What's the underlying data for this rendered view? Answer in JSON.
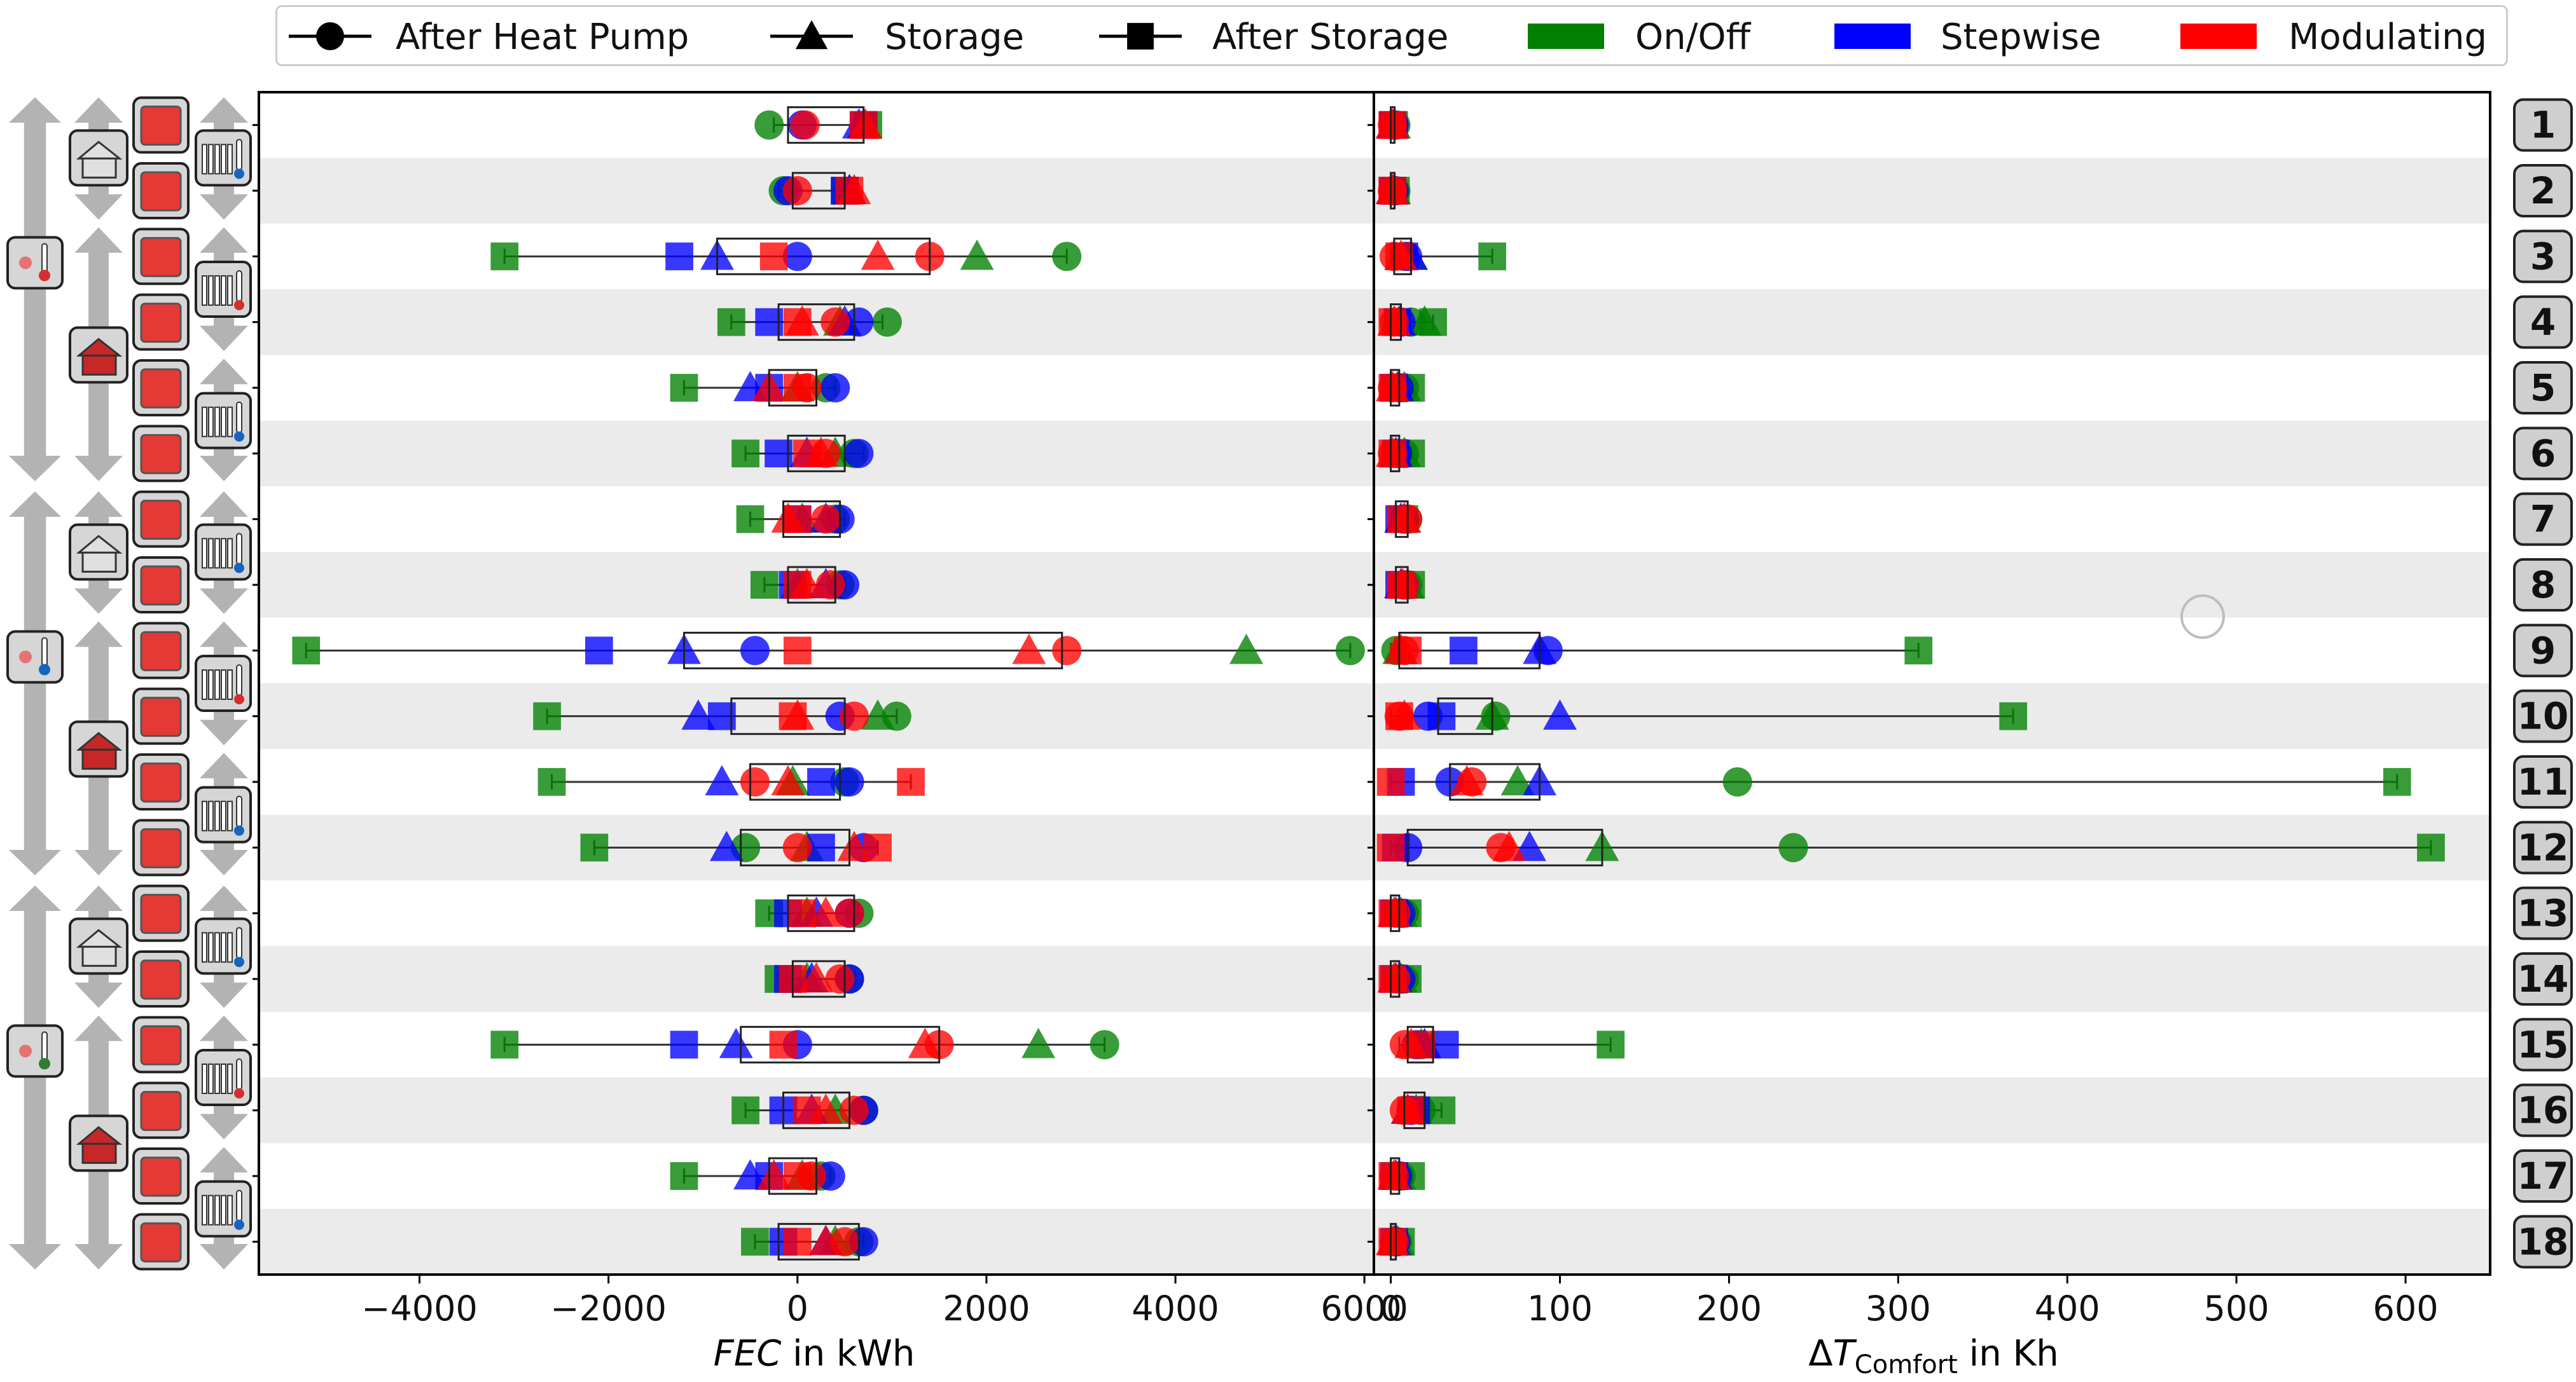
{
  "legend": {
    "entries": [
      {
        "label": "After Heat Pump",
        "marker": "circle",
        "kind": "line"
      },
      {
        "label": "Storage",
        "marker": "triangle",
        "kind": "line"
      },
      {
        "label": "After Storage",
        "marker": "square",
        "kind": "line"
      },
      {
        "label": "On/Off",
        "color": "#008000",
        "kind": "patch"
      },
      {
        "label": "Stepwise",
        "color": "#0000ff",
        "kind": "patch"
      },
      {
        "label": "Modulating",
        "color": "#ff0000",
        "kind": "patch"
      }
    ]
  },
  "colors": {
    "onoff": "#008000",
    "stepwise": "#0000ff",
    "modulating": "#ff0000",
    "band": "#ebebeb"
  },
  "icons": {
    "left_arrows": "double-arrow-icon",
    "house_light": "house-icon",
    "house_red": "red-house-icon",
    "storage": "storage-tank-icon",
    "radiator": "radiator-thermometer-icon",
    "weather": "weather-thermometer-icon"
  },
  "chart_data": [
    {
      "type": "scatter",
      "title": "",
      "xlabel": "FEC in kWh",
      "xlabel_italic_part": "FEC",
      "xlabel_rest": " in kWh",
      "xlim": [
        -5700,
        6100
      ],
      "xticks": [
        -4000,
        -2000,
        0,
        2000,
        4000,
        6000
      ],
      "xtick_labels": [
        "−4000",
        "−2000",
        "0",
        "2000",
        "4000",
        "6000"
      ],
      "rows": [
        {
          "box": [
            -100,
            700
          ],
          "wl": -250,
          "wh": 750,
          "onoff": [
            -300,
            700,
            750
          ],
          "stepwise": [
            50,
            650,
            700
          ],
          "modulating": [
            80,
            720,
            700
          ]
        },
        {
          "box": [
            -50,
            500
          ],
          "wl": -200,
          "wh": 600,
          "onoff": [
            -150,
            550,
            500
          ],
          "stepwise": [
            -100,
            550,
            500
          ],
          "modulating": [
            0,
            600,
            550
          ]
        },
        {
          "box": [
            -850,
            1400
          ],
          "wl": -3100,
          "wh": 2850,
          "onoff": [
            2850,
            1900,
            -3100
          ],
          "stepwise": [
            0,
            -850,
            -1250
          ],
          "modulating": [
            1400,
            850,
            -250
          ]
        },
        {
          "box": [
            -200,
            600
          ],
          "wl": -700,
          "wh": 900,
          "onoff": [
            950,
            450,
            -700
          ],
          "stepwise": [
            650,
            500,
            -300
          ],
          "modulating": [
            400,
            50,
            0
          ]
        },
        {
          "box": [
            -300,
            200
          ],
          "wl": -1200,
          "wh": 400,
          "onoff": [
            300,
            0,
            -1200
          ],
          "stepwise": [
            400,
            -500,
            -300
          ],
          "modulating": [
            100,
            -300,
            0
          ]
        },
        {
          "box": [
            -100,
            500
          ],
          "wl": -550,
          "wh": 700,
          "onoff": [
            600,
            400,
            -550
          ],
          "stepwise": [
            650,
            100,
            -200
          ],
          "modulating": [
            300,
            250,
            100
          ]
        },
        {
          "box": [
            -150,
            450
          ],
          "wl": -500,
          "wh": 500,
          "onoff": [
            400,
            50,
            -500
          ],
          "stepwise": [
            450,
            300,
            0
          ],
          "modulating": [
            300,
            -100,
            0
          ]
        },
        {
          "box": [
            -100,
            400
          ],
          "wl": -350,
          "wh": 500,
          "onoff": [
            450,
            0,
            -350
          ],
          "stepwise": [
            500,
            300,
            -50
          ],
          "modulating": [
            350,
            100,
            0
          ]
        },
        {
          "box": [
            -1200,
            2800
          ],
          "wl": -5200,
          "wh": 5850,
          "onoff": [
            5850,
            4750,
            -5200
          ],
          "stepwise": [
            -450,
            -1200,
            -2100
          ],
          "modulating": [
            2850,
            2450,
            0
          ]
        },
        {
          "box": [
            -700,
            500
          ],
          "wl": -2650,
          "wh": 1050,
          "onoff": [
            1050,
            850,
            -2650
          ],
          "stepwise": [
            450,
            -1050,
            -800
          ],
          "modulating": [
            600,
            0,
            -50
          ]
        },
        {
          "box": [
            -500,
            450
          ],
          "wl": -2600,
          "wh": 1200,
          "onoff": [
            500,
            -50,
            -2600
          ],
          "stepwise": [
            550,
            -800,
            250
          ],
          "modulating": [
            -450,
            -100,
            1200
          ]
        },
        {
          "box": [
            -600,
            550
          ],
          "wl": -2150,
          "wh": 850,
          "onoff": [
            -550,
            100,
            -2150
          ],
          "stepwise": [
            700,
            -750,
            250
          ],
          "modulating": [
            0,
            600,
            850
          ]
        },
        {
          "box": [
            -100,
            600
          ],
          "wl": -300,
          "wh": 650,
          "onoff": [
            650,
            100,
            -300
          ],
          "stepwise": [
            550,
            200,
            -100
          ],
          "modulating": [
            550,
            300,
            50
          ]
        },
        {
          "box": [
            -50,
            500
          ],
          "wl": -200,
          "wh": 600,
          "onoff": [
            550,
            100,
            -200
          ],
          "stepwise": [
            550,
            150,
            -100
          ],
          "modulating": [
            450,
            200,
            -50
          ]
        },
        {
          "box": [
            -600,
            1500
          ],
          "wl": -3100,
          "wh": 3250,
          "onoff": [
            3250,
            2550,
            -3100
          ],
          "stepwise": [
            0,
            -650,
            -1200
          ],
          "modulating": [
            1500,
            1350,
            -150
          ]
        },
        {
          "box": [
            -150,
            550
          ],
          "wl": -550,
          "wh": 750,
          "onoff": [
            700,
            400,
            -550
          ],
          "stepwise": [
            700,
            150,
            -150
          ],
          "modulating": [
            600,
            300,
            100
          ]
        },
        {
          "box": [
            -300,
            200
          ],
          "wl": -1200,
          "wh": 350,
          "onoff": [
            250,
            50,
            -1200
          ],
          "stepwise": [
            350,
            -500,
            -300
          ],
          "modulating": [
            150,
            -250,
            0
          ]
        },
        {
          "box": [
            -200,
            650
          ],
          "wl": -450,
          "wh": 700,
          "onoff": [
            650,
            400,
            -450
          ],
          "stepwise": [
            700,
            300,
            -150
          ],
          "modulating": [
            500,
            300,
            0
          ]
        }
      ]
    },
    {
      "type": "scatter",
      "title": "",
      "xlabel": "ΔT_Comfort in Kh",
      "xlabel_prefix": "Δ",
      "xlabel_symbol": "T",
      "xlabel_subscript": "Comfort",
      "xlabel_rest": " in Kh",
      "xlim": [
        -10,
        650
      ],
      "xticks": [
        0,
        100,
        200,
        300,
        400,
        500,
        600
      ],
      "xtick_labels": [
        "0",
        "100",
        "200",
        "300",
        "400",
        "500",
        "600"
      ],
      "rows": [
        {
          "box": [
            0,
            2
          ],
          "wl": 0,
          "wh": 2,
          "onoff": [
            3,
            2,
            2
          ],
          "stepwise": [
            2,
            1,
            1
          ],
          "modulating": [
            1,
            1,
            1
          ]
        },
        {
          "box": [
            0,
            2
          ],
          "wl": 0,
          "wh": 3,
          "onoff": [
            3,
            2,
            3
          ],
          "stepwise": [
            2,
            1,
            1
          ],
          "modulating": [
            1,
            1,
            1
          ]
        },
        {
          "box": [
            2,
            12
          ],
          "wl": 0,
          "wh": 60,
          "onoff": [
            8,
            12,
            60
          ],
          "stepwise": [
            10,
            12,
            8
          ],
          "modulating": [
            2,
            6,
            5
          ]
        },
        {
          "box": [
            0,
            6
          ],
          "wl": 0,
          "wh": 25,
          "onoff": [
            12,
            20,
            25
          ],
          "stepwise": [
            6,
            5,
            4
          ],
          "modulating": [
            2,
            2,
            1
          ]
        },
        {
          "box": [
            0,
            5
          ],
          "wl": 0,
          "wh": 12,
          "onoff": [
            8,
            8,
            12
          ],
          "stepwise": [
            5,
            4,
            2
          ],
          "modulating": [
            1,
            1,
            1
          ]
        },
        {
          "box": [
            0,
            5
          ],
          "wl": 0,
          "wh": 12,
          "onoff": [
            8,
            8,
            12
          ],
          "stepwise": [
            4,
            3,
            3
          ],
          "modulating": [
            1,
            1,
            1
          ]
        },
        {
          "box": [
            3,
            10
          ],
          "wl": 3,
          "wh": 12,
          "onoff": [
            10,
            8,
            8
          ],
          "stepwise": [
            8,
            6,
            5
          ],
          "modulating": [
            10,
            8,
            6
          ]
        },
        {
          "box": [
            3,
            10
          ],
          "wl": 3,
          "wh": 12,
          "onoff": [
            10,
            10,
            12
          ],
          "stepwise": [
            8,
            6,
            5
          ],
          "modulating": [
            8,
            7,
            6
          ]
        },
        {
          "box": [
            5,
            88
          ],
          "wl": 0,
          "wh": 312,
          "onoff": [
            3,
            5,
            312
          ],
          "stepwise": [
            93,
            88,
            43
          ],
          "modulating": [
            8,
            6,
            10
          ]
        },
        {
          "box": [
            28,
            60
          ],
          "wl": 0,
          "wh": 368,
          "onoff": [
            62,
            60,
            368
          ],
          "stepwise": [
            22,
            100,
            30
          ],
          "modulating": [
            5,
            8,
            5
          ]
        },
        {
          "box": [
            35,
            88
          ],
          "wl": 0,
          "wh": 595,
          "onoff": [
            205,
            75,
            595
          ],
          "stepwise": [
            35,
            88,
            6
          ],
          "modulating": [
            48,
            45,
            0
          ]
        },
        {
          "box": [
            10,
            125
          ],
          "wl": 0,
          "wh": 615,
          "onoff": [
            238,
            125,
            615
          ],
          "stepwise": [
            10,
            82,
            3
          ],
          "modulating": [
            65,
            70,
            0
          ]
        },
        {
          "box": [
            0,
            5
          ],
          "wl": 0,
          "wh": 10,
          "onoff": [
            8,
            6,
            10
          ],
          "stepwise": [
            6,
            3,
            2
          ],
          "modulating": [
            3,
            2,
            1
          ]
        },
        {
          "box": [
            0,
            5
          ],
          "wl": 0,
          "wh": 10,
          "onoff": [
            8,
            6,
            10
          ],
          "stepwise": [
            6,
            3,
            2
          ],
          "modulating": [
            3,
            2,
            1
          ]
        },
        {
          "box": [
            10,
            25
          ],
          "wl": 5,
          "wh": 130,
          "onoff": [
            18,
            18,
            130
          ],
          "stepwise": [
            15,
            20,
            32
          ],
          "modulating": [
            8,
            12,
            18
          ]
        },
        {
          "box": [
            8,
            20
          ],
          "wl": 5,
          "wh": 30,
          "onoff": [
            18,
            15,
            30
          ],
          "stepwise": [
            12,
            10,
            15
          ],
          "modulating": [
            8,
            10,
            12
          ]
        },
        {
          "box": [
            0,
            5
          ],
          "wl": 0,
          "wh": 12,
          "onoff": [
            6,
            5,
            12
          ],
          "stepwise": [
            4,
            3,
            2
          ],
          "modulating": [
            2,
            2,
            1
          ]
        },
        {
          "box": [
            0,
            3
          ],
          "wl": 0,
          "wh": 6,
          "onoff": [
            4,
            4,
            6
          ],
          "stepwise": [
            3,
            2,
            2
          ],
          "modulating": [
            2,
            1,
            1
          ]
        }
      ]
    }
  ],
  "row_labels": [
    "1",
    "2",
    "3",
    "4",
    "5",
    "6",
    "7",
    "8",
    "9",
    "10",
    "11",
    "12",
    "13",
    "14",
    "15",
    "16",
    "17",
    "18"
  ]
}
